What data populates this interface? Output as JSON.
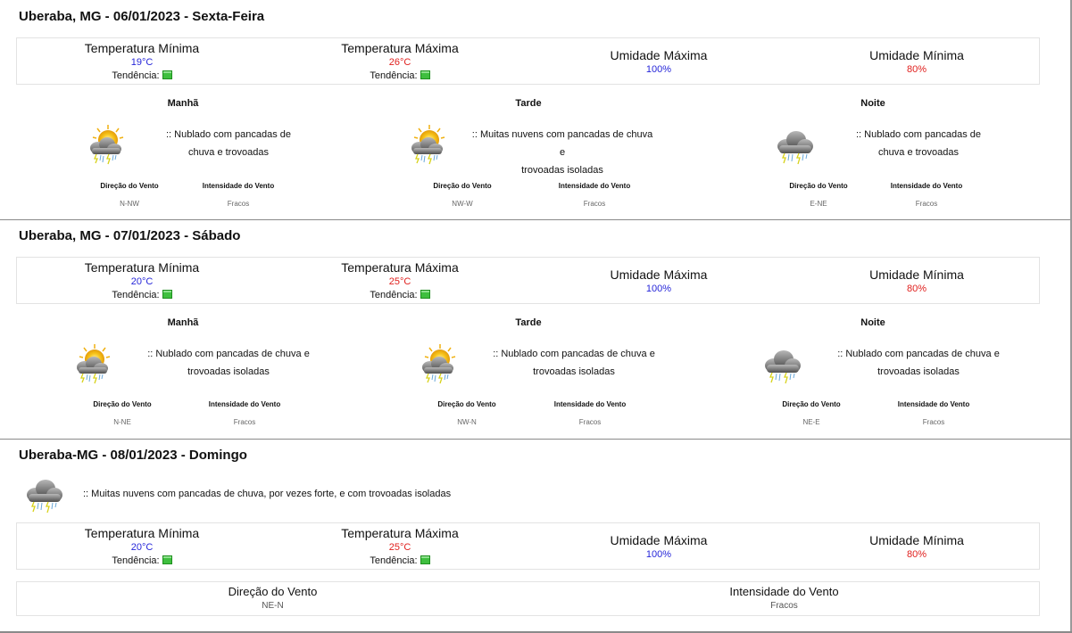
{
  "days": [
    {
      "title": "Uberaba, MG - 06/01/2023 - Sexta-Feira",
      "temp_min": {
        "label": "Temperatura Mínima",
        "value": "19°C",
        "trend_label": "Tendência:"
      },
      "temp_max": {
        "label": "Temperatura Máxima",
        "value": "26°C",
        "trend_label": "Tendência:"
      },
      "hum_max": {
        "label": "Umidade Máxima",
        "value": "100%"
      },
      "hum_min": {
        "label": "Umidade Mínima",
        "value": "80%"
      },
      "periods": [
        {
          "name": "Manhã",
          "icon": "sun-cloud-storm-icon",
          "forecast_line1": ":: Nublado com pancadas de",
          "forecast_line2": "chuva e trovoadas",
          "wind_dir_label": "Direção do Vento",
          "wind_dir": "N-NW",
          "wind_int_label": "Intensidade do Vento",
          "wind_int": "Fracos"
        },
        {
          "name": "Tarde",
          "icon": "sun-cloud-storm-icon",
          "forecast_line1": ":: Muitas nuvens com pancadas de chuva e",
          "forecast_line2": "trovoadas isoladas",
          "wind_dir_label": "Direção do Vento",
          "wind_dir": "NW-W",
          "wind_int_label": "Intensidade do Vento",
          "wind_int": "Fracos"
        },
        {
          "name": "Noite",
          "icon": "cloud-storm-icon",
          "forecast_line1": ":: Nublado com pancadas de",
          "forecast_line2": "chuva e trovoadas",
          "wind_dir_label": "Direção do Vento",
          "wind_dir": "E-NE",
          "wind_int_label": "Intensidade do Vento",
          "wind_int": "Fracos"
        }
      ]
    },
    {
      "title": "Uberaba, MG - 07/01/2023 - Sábado",
      "temp_min": {
        "label": "Temperatura Mínima",
        "value": "20°C",
        "trend_label": "Tendência:"
      },
      "temp_max": {
        "label": "Temperatura Máxima",
        "value": "25°C",
        "trend_label": "Tendência:"
      },
      "hum_max": {
        "label": "Umidade Máxima",
        "value": "100%"
      },
      "hum_min": {
        "label": "Umidade Mínima",
        "value": "80%"
      },
      "periods": [
        {
          "name": "Manhã",
          "icon": "sun-cloud-storm-icon",
          "forecast_line1": ":: Nublado com pancadas de chuva e",
          "forecast_line2": "trovoadas isoladas",
          "wind_dir_label": "Direção do Vento",
          "wind_dir": "N-NE",
          "wind_int_label": "Intensidade do Vento",
          "wind_int": "Fracos"
        },
        {
          "name": "Tarde",
          "icon": "sun-cloud-storm-icon",
          "forecast_line1": ":: Nublado com pancadas de chuva e",
          "forecast_line2": "trovoadas isoladas",
          "wind_dir_label": "Direção do Vento",
          "wind_dir": "NW-N",
          "wind_int_label": "Intensidade do Vento",
          "wind_int": "Fracos"
        },
        {
          "name": "Noite",
          "icon": "cloud-storm-icon",
          "forecast_line1": ":: Nublado com pancadas de chuva e",
          "forecast_line2": "trovoadas isoladas",
          "wind_dir_label": "Direção do Vento",
          "wind_dir": "NE-E",
          "wind_int_label": "Intensidade do Vento",
          "wind_int": "Fracos"
        }
      ]
    }
  ],
  "day3": {
    "title": "Uberaba-MG - 08/01/2023 - Domingo",
    "icon": "cloud-storm-icon",
    "forecast": ":: Muitas nuvens com pancadas de chuva, por vezes forte, e com trovoadas isoladas",
    "temp_min": {
      "label": "Temperatura Mínima",
      "value": "20°C",
      "trend_label": "Tendência:"
    },
    "temp_max": {
      "label": "Temperatura Máxima",
      "value": "25°C",
      "trend_label": "Tendência:"
    },
    "hum_max": {
      "label": "Umidade Máxima",
      "value": "100%"
    },
    "hum_min": {
      "label": "Umidade Mínima",
      "value": "80%"
    },
    "wind_dir_label": "Direção do Vento",
    "wind_dir": "NE-N",
    "wind_int_label": "Intensidade do Vento",
    "wind_int": "Fracos"
  },
  "colors": {
    "min_value": "#2626d9",
    "max_value": "#e0201e",
    "trend_icon": "#3fbf3f"
  }
}
